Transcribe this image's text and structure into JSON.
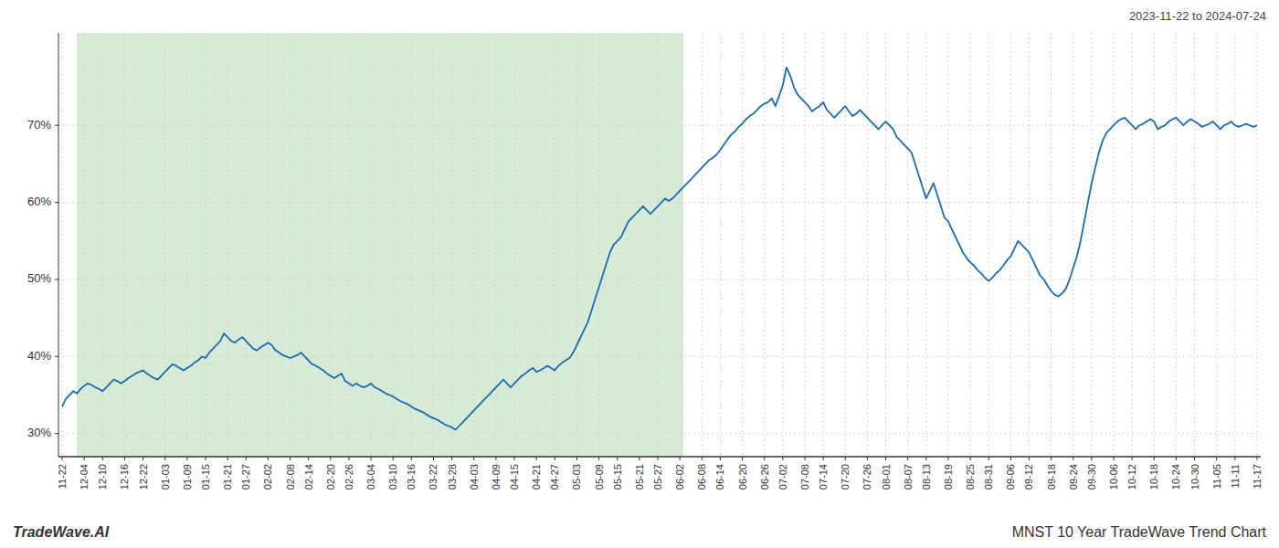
{
  "chart_data": {
    "type": "line",
    "title": "MNST 10 Year TradeWave Trend Chart",
    "subtitle": "2023-11-22 to 2024-07-24",
    "annotations": [
      "TradeWave.AI"
    ],
    "color": "#1a6bb5",
    "grid": true,
    "ylim": [
      27,
      82
    ],
    "yticks": [
      {
        "value": 30,
        "label": "30%"
      },
      {
        "value": 40,
        "label": "40%"
      },
      {
        "value": 50,
        "label": "50%"
      },
      {
        "value": 60,
        "label": "60%"
      },
      {
        "value": 70,
        "label": "70%"
      }
    ],
    "xlim": [
      -1,
      326
    ],
    "shaded_region": {
      "start": 4,
      "end": 169,
      "color": "#d6ead6"
    },
    "categories": [
      "11-22",
      null,
      null,
      null,
      null,
      null,
      "12-04",
      null,
      null,
      null,
      null,
      "12-10",
      null,
      null,
      null,
      null,
      null,
      "12-16",
      null,
      null,
      null,
      null,
      "12-22",
      null,
      null,
      null,
      null,
      null,
      "01-03",
      null,
      null,
      null,
      null,
      null,
      "01-09",
      null,
      null,
      null,
      null,
      "01-15",
      null,
      null,
      null,
      null,
      null,
      "01-21",
      null,
      null,
      null,
      null,
      "01-27",
      null,
      null,
      null,
      null,
      null,
      "02-02",
      null,
      null,
      null,
      null,
      null,
      "02-08",
      null,
      null,
      null,
      null,
      "02-14",
      null,
      null,
      null,
      null,
      null,
      "02-20",
      null,
      null,
      null,
      null,
      "02-26",
      null,
      null,
      null,
      null,
      null,
      "03-04",
      null,
      null,
      null,
      null,
      null,
      "03-10",
      null,
      null,
      null,
      null,
      "03-16",
      null,
      null,
      null,
      null,
      null,
      "03-22",
      null,
      null,
      null,
      null,
      "03-28",
      null,
      null,
      null,
      null,
      null,
      "04-03",
      null,
      null,
      null,
      null,
      null,
      "04-09",
      null,
      null,
      null,
      null,
      "04-15",
      null,
      null,
      null,
      null,
      null,
      "04-21",
      null,
      null,
      null,
      null,
      "04-27",
      null,
      null,
      null,
      null,
      null,
      "05-03",
      null,
      null,
      null,
      null,
      null,
      "05-09",
      null,
      null,
      null,
      null,
      "05-15",
      null,
      null,
      null,
      null,
      null,
      "05-21",
      null,
      null,
      null,
      null,
      "05-27",
      null,
      null,
      null,
      null,
      null,
      "06-02",
      null,
      null,
      null,
      null,
      null,
      "06-08",
      null,
      null,
      null,
      null,
      "06-14",
      null,
      null,
      null,
      null,
      null,
      "06-20",
      null,
      null,
      null,
      null,
      null,
      "06-26",
      null,
      null,
      null,
      null,
      "07-02",
      null,
      null,
      null,
      null,
      null,
      "07-08",
      null,
      null,
      null,
      null,
      "07-14",
      null,
      null,
      null,
      null,
      null,
      "07-20",
      null,
      null,
      null,
      null,
      null,
      "07-26",
      null,
      null,
      null,
      null,
      "08-01",
      null,
      null,
      null,
      null,
      null,
      "08-07",
      null,
      null,
      null,
      null,
      "08-13",
      null,
      null,
      null,
      null,
      null,
      "08-19",
      null,
      null,
      null,
      null,
      null,
      "08-25",
      null,
      null,
      null,
      null,
      "08-31",
      null,
      null,
      null,
      null,
      null,
      "09-06",
      null,
      null,
      null,
      null,
      "09-12",
      null,
      null,
      null,
      null,
      null,
      "09-18",
      null,
      null,
      null,
      null,
      null,
      "09-24",
      null,
      null,
      null,
      null,
      "09-30",
      null,
      null,
      null,
      null,
      null,
      "10-06",
      null,
      null,
      null,
      null,
      "10-12",
      null,
      null,
      null,
      null,
      null,
      "10-18",
      null,
      null,
      null,
      null,
      null,
      "10-24",
      null,
      null,
      null,
      null,
      "10-30",
      null,
      null,
      null,
      null,
      null,
      "11-05",
      null,
      null,
      null,
      null,
      "11-11",
      null,
      null,
      null,
      null,
      null,
      "11-17"
    ],
    "values": [
      33.5,
      34.5,
      35.0,
      35.5,
      35.2,
      35.8,
      36.2,
      36.5,
      36.3,
      36.0,
      35.8,
      35.5,
      36.0,
      36.5,
      37.0,
      36.8,
      36.5,
      36.8,
      37.2,
      37.5,
      37.8,
      38.0,
      38.2,
      37.8,
      37.5,
      37.2,
      37.0,
      37.5,
      38.0,
      38.5,
      39.0,
      38.8,
      38.5,
      38.2,
      38.5,
      38.8,
      39.2,
      39.5,
      40.0,
      39.8,
      40.5,
      41.0,
      41.5,
      42.0,
      43.0,
      42.5,
      42.0,
      41.8,
      42.2,
      42.5,
      42.0,
      41.5,
      41.0,
      40.8,
      41.2,
      41.5,
      41.8,
      41.5,
      40.8,
      40.5,
      40.2,
      40.0,
      39.8,
      40.0,
      40.2,
      40.5,
      40.0,
      39.5,
      39.0,
      38.8,
      38.5,
      38.2,
      37.8,
      37.5,
      37.2,
      37.5,
      37.8,
      36.8,
      36.5,
      36.2,
      36.5,
      36.2,
      36.0,
      36.2,
      36.5,
      36.0,
      35.8,
      35.5,
      35.2,
      35.0,
      34.8,
      34.5,
      34.2,
      34.0,
      33.8,
      33.5,
      33.2,
      33.0,
      32.8,
      32.5,
      32.2,
      32.0,
      31.8,
      31.5,
      31.2,
      31.0,
      30.8,
      30.5,
      31.0,
      31.5,
      32.0,
      32.5,
      33.0,
      33.5,
      34.0,
      34.5,
      35.0,
      35.5,
      36.0,
      36.5,
      37.0,
      36.5,
      36.0,
      36.5,
      37.0,
      37.5,
      37.8,
      38.2,
      38.5,
      38.0,
      38.2,
      38.5,
      38.8,
      38.5,
      38.2,
      38.8,
      39.2,
      39.5,
      39.8,
      40.5,
      41.5,
      42.5,
      43.5,
      44.5,
      46.0,
      47.5,
      49.0,
      50.5,
      52.0,
      53.5,
      54.5,
      55.0,
      55.5,
      56.5,
      57.5,
      58.0,
      58.5,
      59.0,
      59.5,
      59.0,
      58.5,
      59.0,
      59.5,
      60.0,
      60.5,
      60.2,
      60.5,
      61.0,
      61.5,
      62.0,
      62.5,
      63.0,
      63.5,
      64.0,
      64.5,
      65.0,
      65.5,
      65.8,
      66.2,
      66.8,
      67.5,
      68.2,
      68.8,
      69.2,
      69.8,
      70.2,
      70.8,
      71.2,
      71.5,
      72.0,
      72.5,
      72.8,
      73.0,
      73.5,
      72.5,
      73.8,
      75.2,
      77.5,
      76.5,
      75.0,
      74.0,
      73.5,
      73.0,
      72.5,
      71.8,
      72.2,
      72.5,
      73.0,
      72.0,
      71.5,
      71.0,
      71.5,
      72.0,
      72.5,
      71.8,
      71.2,
      71.5,
      72.0,
      71.5,
      71.0,
      70.5,
      70.0,
      69.5,
      70.0,
      70.5,
      70.0,
      69.5,
      68.5,
      68.0,
      67.5,
      67.0,
      66.5,
      65.0,
      63.5,
      62.0,
      60.5,
      61.5,
      62.5,
      61.0,
      59.5,
      58.0,
      57.5,
      56.5,
      55.5,
      54.5,
      53.5,
      52.8,
      52.2,
      51.8,
      51.2,
      50.8,
      50.2,
      49.8,
      50.2,
      50.8,
      51.2,
      51.8,
      52.5,
      53.0,
      54.0,
      55.0,
      54.5,
      54.0,
      53.5,
      52.5,
      51.5,
      50.5,
      50.0,
      49.2,
      48.5,
      48.0,
      47.8,
      48.2,
      48.8,
      50.0,
      51.5,
      53.0,
      55.0,
      57.5,
      60.0,
      62.5,
      64.5,
      66.5,
      68.0,
      69.0,
      69.5,
      70.0,
      70.5,
      70.8,
      71.0,
      70.5,
      70.0,
      69.5,
      70.0,
      70.2,
      70.5,
      70.8,
      70.5,
      69.5,
      69.8,
      70.0,
      70.5,
      70.8,
      71.0,
      70.5,
      70.0,
      70.5,
      70.8,
      70.5,
      70.2,
      69.8,
      70.0,
      70.2,
      70.5,
      70.0,
      69.5,
      70.0,
      70.2,
      70.5,
      70.0,
      69.8,
      70.0,
      70.2,
      70.0,
      69.8,
      70.0
    ]
  }
}
